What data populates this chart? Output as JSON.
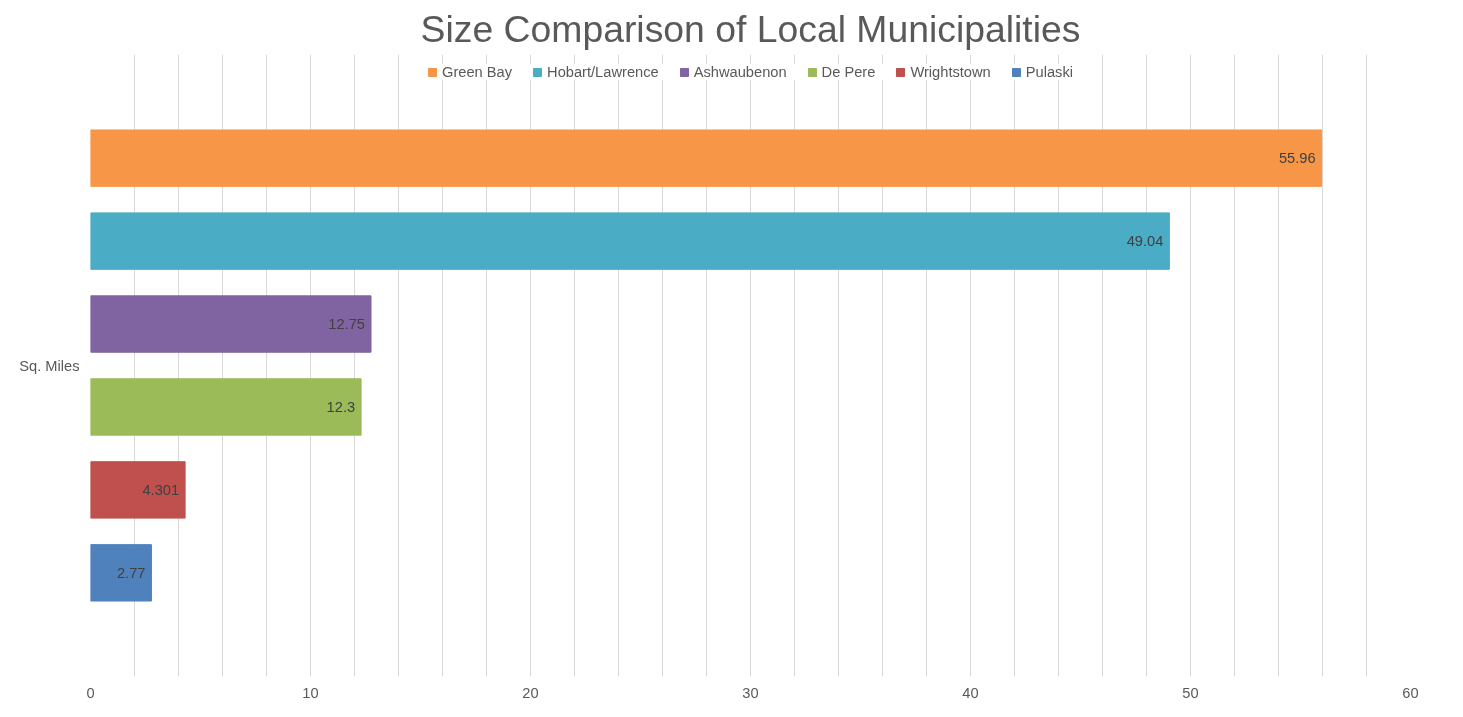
{
  "chart_data": {
    "type": "bar",
    "orientation": "horizontal",
    "title": "Size Comparison of Local Municipalities",
    "categories": [
      "Sq. Miles"
    ],
    "series": [
      {
        "name": "Green Bay",
        "color": "#f79646",
        "values": [
          55.96
        ]
      },
      {
        "name": "Hobart/Lawrence",
        "color": "#4bacc6",
        "values": [
          49.04
        ]
      },
      {
        "name": "Ashwaubenon",
        "color": "#8064a2",
        "values": [
          12.75
        ]
      },
      {
        "name": "De Pere",
        "color": "#9bbb59",
        "values": [
          12.3
        ]
      },
      {
        "name": "Wrightstown",
        "color": "#c0504d",
        "values": [
          4.301
        ]
      },
      {
        "name": "Pulaski",
        "color": "#4f81bd",
        "values": [
          2.77
        ]
      }
    ],
    "xlim": [
      0,
      60
    ],
    "xticks": [
      0,
      {
        "value": 2,
        "label": null
      },
      {
        "value": 4,
        "label": null
      },
      {
        "value": 6,
        "label": null
      },
      {
        "value": 8,
        "label": null
      },
      10,
      {
        "value": 12,
        "label": null
      },
      {
        "value": 14,
        "label": null
      },
      {
        "value": 16,
        "label": null
      },
      {
        "value": 18,
        "label": null
      },
      20,
      {
        "value": 22,
        "label": null
      },
      {
        "value": 24,
        "label": null
      },
      {
        "value": 26,
        "label": null
      },
      {
        "value": 28,
        "label": null
      },
      30,
      {
        "value": 32,
        "label": null
      },
      {
        "value": 34,
        "label": null
      },
      {
        "value": 36,
        "label": null
      },
      {
        "value": 38,
        "label": null
      },
      40,
      {
        "value": 42,
        "label": null
      },
      {
        "value": 44,
        "label": null
      },
      {
        "value": 46,
        "label": null
      },
      {
        "value": 48,
        "label": null
      },
      50,
      {
        "value": 52,
        "label": null
      },
      {
        "value": 54,
        "label": null
      },
      {
        "value": 56,
        "label": null
      },
      {
        "value": 58,
        "label": null
      },
      60
    ],
    "grid": "x",
    "legend": "top",
    "data_labels": true
  }
}
